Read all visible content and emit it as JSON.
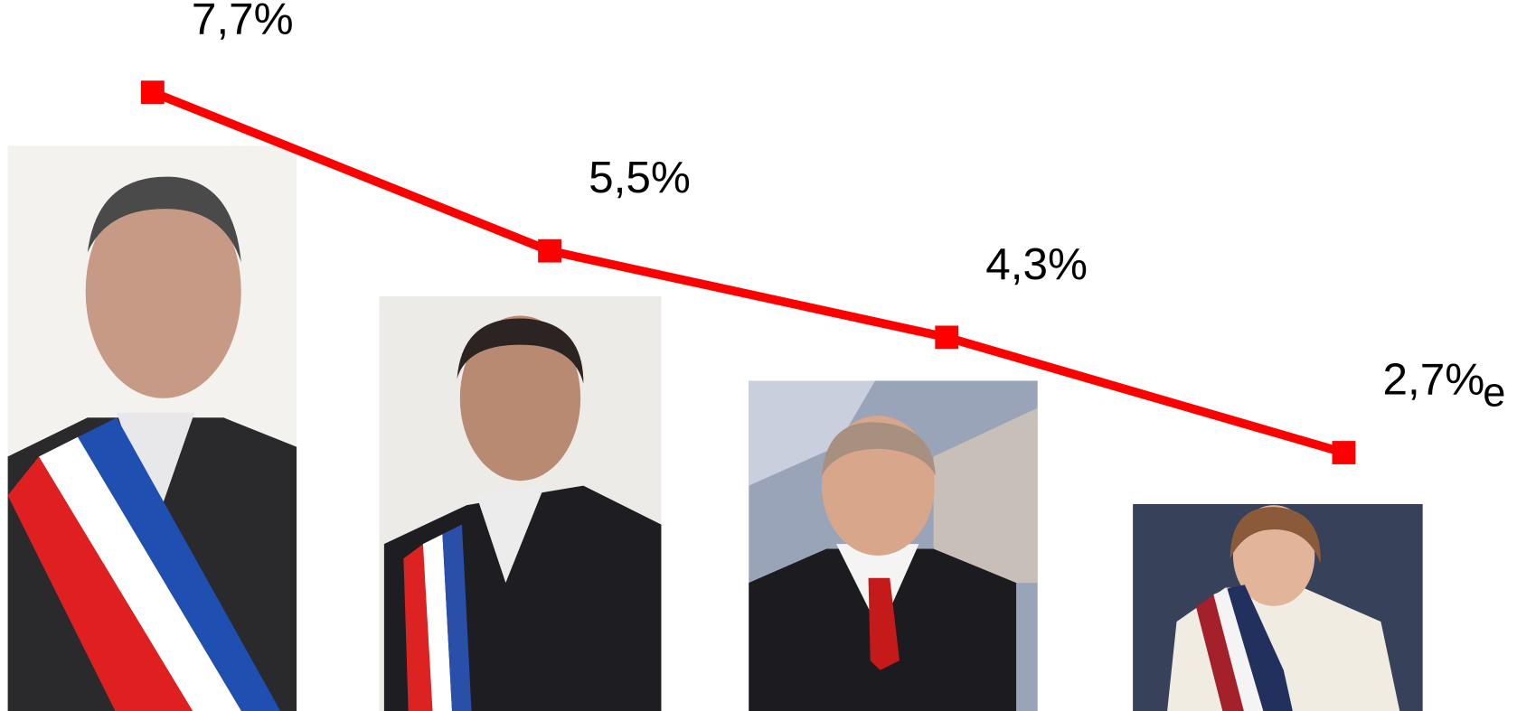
{
  "chart_data": {
    "type": "line",
    "values": [
      7.7,
      5.5,
      4.3,
      2.7
    ],
    "value_labels": [
      "7,7%",
      "5,5%",
      "4,3%",
      "2,7%"
    ],
    "annotation": "e",
    "color": "#ff0000"
  }
}
